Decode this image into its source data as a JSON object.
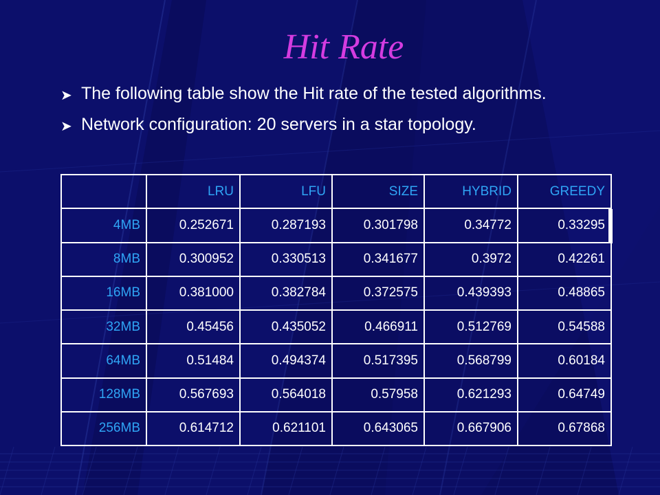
{
  "slide": {
    "title": "Hit Rate",
    "bullets": [
      "The following table show the Hit rate of the tested algorithms.",
      "Network configuration: 20  servers in a star topology."
    ]
  },
  "table": {
    "columns": [
      "",
      "LRU",
      "LFU",
      "SIZE",
      "HYBRID",
      "GREEDY"
    ],
    "rows": [
      [
        "4MB",
        "0.252671",
        "0.287193",
        "0.301798",
        "0.34772",
        "0.33295"
      ],
      [
        "8MB",
        "0.300952",
        "0.330513",
        "0.341677",
        "0.3972",
        "0.42261"
      ],
      [
        "16MB",
        "0.381000",
        "0.382784",
        "0.372575",
        "0.439393",
        "0.48865"
      ],
      [
        "32MB",
        "0.45456",
        "0.435052",
        "0.466911",
        "0.512769",
        "0.54588"
      ],
      [
        "64MB",
        "0.51484",
        "0.494374",
        "0.517395",
        "0.568799",
        "0.60184"
      ],
      [
        "128MB",
        "0.567693",
        "0.564018",
        "0.57958",
        "0.621293",
        "0.64749"
      ],
      [
        "256MB",
        "0.614712",
        "0.621101",
        "0.643065",
        "0.667906",
        "0.67868"
      ]
    ]
  },
  "colors": {
    "background": "#0a0c5e",
    "title": "#d43ce0",
    "header_text": "#2fa5f5",
    "body_text": "#ffffff"
  }
}
